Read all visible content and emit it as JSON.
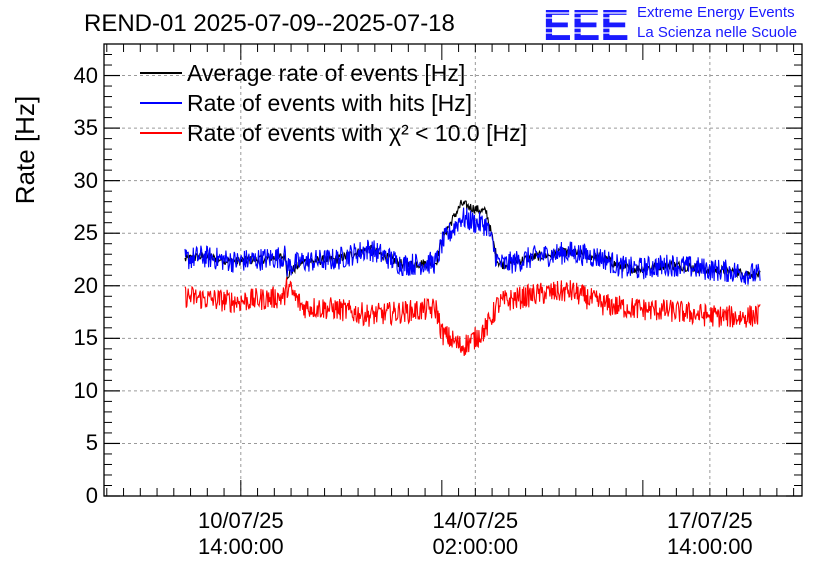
{
  "chart_data": {
    "type": "line",
    "title": "REND-01 2025-07-09--2025-07-18",
    "xlabel": "",
    "ylabel": "Rate [Hz]",
    "ylim": [
      0,
      43
    ],
    "yticks": [
      "0",
      "5",
      "10",
      "15",
      "20",
      "25",
      "30",
      "35",
      "40"
    ],
    "xtick_labels": [
      {
        "date": "10/07/25",
        "time": "14:00:00"
      },
      {
        "date": "14/07/25",
        "time": "02:00:00"
      },
      {
        "date": "17/07/25",
        "time": "14:00:00"
      }
    ],
    "grid": true,
    "legend_position": "top-left",
    "x": [
      "2025-07-09 18:00",
      "2025-07-10 00:00",
      "2025-07-10 12:00",
      "2025-07-11 00:00",
      "2025-07-11 06:00",
      "2025-07-11 06:30",
      "2025-07-11 12:00",
      "2025-07-12 00:00",
      "2025-07-12 12:00",
      "2025-07-13 00:00",
      "2025-07-13 12:00",
      "2025-07-13 14:00",
      "2025-07-13 21:00",
      "2025-07-14 02:00",
      "2025-07-14 06:00",
      "2025-07-14 10:00",
      "2025-07-14 12:00",
      "2025-07-15 00:00",
      "2025-07-15 12:00",
      "2025-07-16 00:00",
      "2025-07-16 06:00",
      "2025-07-16 12:00",
      "2025-07-17 00:00",
      "2025-07-17 12:00",
      "2025-07-18 00:00",
      "2025-07-18 08:00"
    ],
    "series": [
      {
        "name": "Average rate of events [Hz]",
        "color": "#000000",
        "values": [
          22.5,
          22.8,
          22.3,
          22.6,
          22.8,
          21.0,
          22.3,
          22.5,
          23.5,
          22.0,
          22.2,
          24.5,
          27.8,
          27.3,
          27.0,
          22.3,
          22.0,
          22.8,
          23.2,
          22.6,
          21.8,
          21.6,
          22.0,
          21.6,
          21.3,
          21.0
        ]
      },
      {
        "name": "Rate of events with hits [Hz]",
        "color": "#0000ff",
        "values": [
          22.5,
          22.8,
          22.3,
          22.6,
          22.8,
          21.8,
          22.3,
          22.5,
          23.5,
          22.0,
          22.2,
          24.0,
          26.5,
          26.0,
          25.8,
          22.3,
          22.0,
          22.8,
          23.2,
          22.6,
          21.8,
          21.6,
          22.0,
          21.6,
          21.3,
          21.0
        ]
      },
      {
        "name": "Rate of events with χ² < 10.0 [Hz]",
        "color": "#ff0000",
        "values": [
          19.0,
          18.8,
          18.5,
          18.8,
          19.0,
          20.0,
          18.0,
          17.8,
          17.2,
          17.5,
          17.8,
          15.5,
          14.2,
          15.0,
          16.0,
          18.2,
          18.5,
          19.2,
          19.5,
          18.2,
          18.0,
          17.8,
          17.6,
          17.2,
          17.0,
          17.2
        ]
      }
    ]
  },
  "logo": {
    "letters": "EEE",
    "line1": "Extreme Energy Events",
    "line2": "La Scienza nelle Scuole"
  }
}
